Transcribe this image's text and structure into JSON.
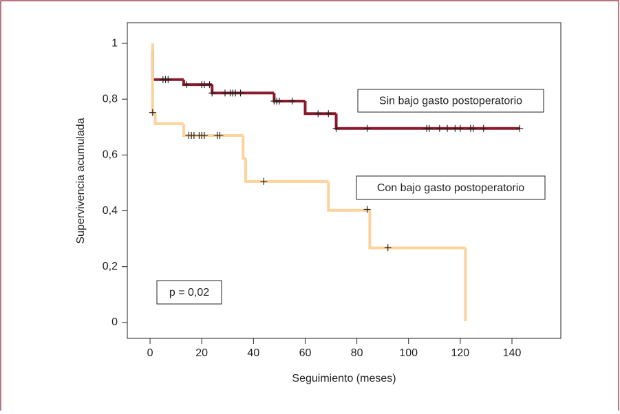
{
  "chart_data": {
    "type": "step",
    "xlabel": "Seguimiento (meses)",
    "ylabel": "Supervivencia acumulada",
    "xlim": [
      -8.8,
      158.9
    ],
    "ylim": [
      -0.057,
      1.074
    ],
    "xticks": [
      0,
      20,
      40,
      60,
      80,
      100,
      120,
      140
    ],
    "yticks": [
      0,
      {
        "value": 0.2,
        "label": "0,2"
      },
      {
        "value": 0.4,
        "label": "0,4"
      },
      {
        "value": 0.6,
        "label": "0,6"
      },
      {
        "value": 0.8,
        "label": "0,8"
      },
      1
    ],
    "series": [
      {
        "name": "Sin bajo gasto postoperatorio",
        "color": "#8b1a2e",
        "x": [
          1,
          1,
          13,
          24,
          48,
          60,
          72,
          143
        ],
        "values": [
          0.975,
          0.87,
          0.852,
          0.822,
          0.793,
          0.748,
          0.695,
          0.695
        ],
        "censored": {
          "x": [
            5,
            6,
            7,
            14,
            20,
            21,
            23,
            24,
            29,
            31,
            32,
            33,
            35,
            48,
            49,
            50,
            55,
            65,
            69,
            72,
            84,
            107,
            108,
            112,
            115,
            118,
            120,
            124,
            125,
            129,
            143
          ],
          "values": [
            0.87,
            0.87,
            0.87,
            0.852,
            0.852,
            0.852,
            0.852,
            0.822,
            0.822,
            0.822,
            0.822,
            0.822,
            0.822,
            0.793,
            0.793,
            0.793,
            0.793,
            0.748,
            0.748,
            0.695,
            0.695,
            0.695,
            0.695,
            0.695,
            0.695,
            0.695,
            0.695,
            0.695,
            0.695,
            0.695,
            0.695
          ]
        }
      },
      {
        "name": "Con bajo gasto postoperatorio",
        "color": "#fcd39c",
        "x": [
          1,
          1,
          2,
          13,
          36,
          37,
          69,
          85,
          122
        ],
        "values": [
          1,
          0.75,
          0.712,
          0.67,
          0.588,
          0.505,
          0.402,
          0.267,
          0.005
        ],
        "censored": {
          "x": [
            1,
            15,
            16,
            17,
            19,
            20,
            21,
            26,
            27,
            44,
            84,
            92
          ],
          "values": [
            0.752,
            0.67,
            0.67,
            0.67,
            0.67,
            0.67,
            0.67,
            0.67,
            0.67,
            0.505,
            0.405,
            0.268
          ]
        }
      }
    ],
    "annotation": "p  = 0,02"
  }
}
